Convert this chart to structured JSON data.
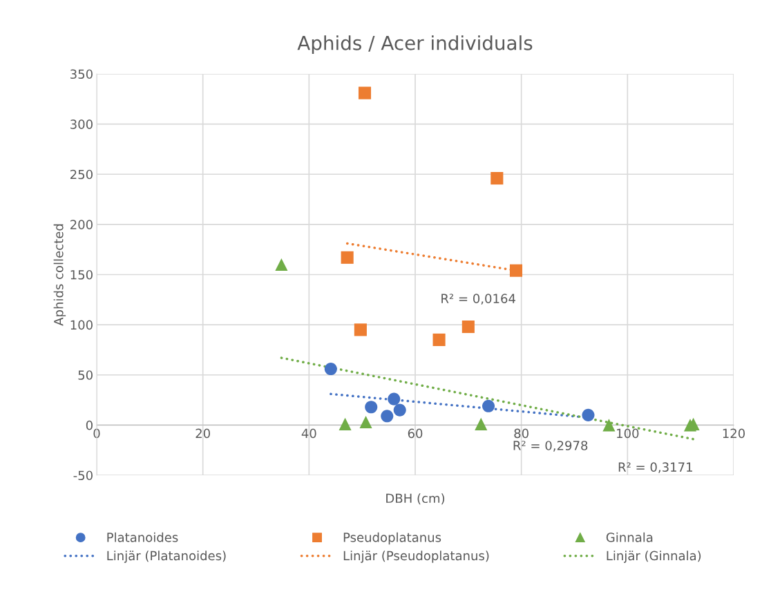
{
  "chart_data": {
    "type": "scatter",
    "title": "Aphids / Acer individuals",
    "xlabel": "DBH (cm)",
    "ylabel": "Aphids collected",
    "xlim": [
      0,
      120
    ],
    "xticks": [
      0,
      20,
      40,
      60,
      80,
      100,
      120
    ],
    "ylim": [
      -50,
      350
    ],
    "yticks": [
      -50,
      0,
      50,
      100,
      150,
      200,
      250,
      300,
      350
    ],
    "grid": true,
    "legend": "bottom",
    "series": [
      {
        "name": "Platanoides",
        "type": "scatter",
        "marker": "circle",
        "color": "#4472c4",
        "x": [
          44.1,
          51.7,
          56.0,
          54.7,
          57.1,
          73.8,
          92.6
        ],
        "values": [
          56,
          18,
          26,
          9,
          15,
          19,
          10
        ]
      },
      {
        "name": "Pseudoplatanus",
        "type": "scatter",
        "marker": "square",
        "color": "#ed7d31",
        "x": [
          50.5,
          75.4,
          47.2,
          79.0,
          49.7,
          64.5,
          70.0
        ],
        "values": [
          331,
          246,
          167,
          154,
          95,
          85,
          98
        ]
      },
      {
        "name": "Ginnala",
        "type": "scatter",
        "marker": "triangle",
        "color": "#70ad47",
        "x": [
          34.8,
          46.8,
          50.7,
          72.4,
          96.5,
          111.8,
          112.4
        ],
        "values": [
          160,
          1,
          3,
          1,
          0,
          0,
          1
        ]
      },
      {
        "name": "Linjär (Platanoides)",
        "type": "line",
        "line_style": "dotted",
        "color": "#4472c4",
        "x": [
          44.1,
          92.6
        ],
        "values": [
          31,
          7.5
        ]
      },
      {
        "name": "Linjär (Pseudoplatanus)",
        "type": "line",
        "line_style": "dotted",
        "color": "#ed7d31",
        "x": [
          47.2,
          79.0
        ],
        "values": [
          181,
          154
        ]
      },
      {
        "name": "Linjär (Ginnala)",
        "type": "line",
        "line_style": "dotted",
        "color": "#70ad47",
        "x": [
          34.8,
          112.4
        ],
        "values": [
          67,
          -14
        ]
      }
    ],
    "annotations": [
      "R² = 0,2978",
      "R² = 0,0164",
      "R² = 0,3171"
    ]
  }
}
